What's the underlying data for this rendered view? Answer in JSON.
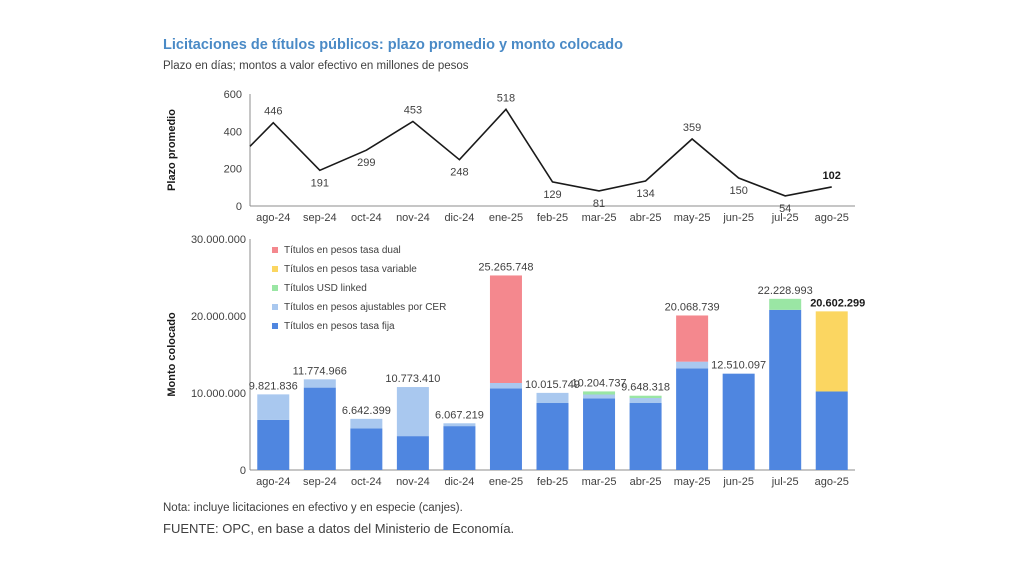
{
  "title": "Licitaciones de títulos públicos: plazo promedio y monto colocado",
  "subtitle": "Plazo en días; montos a valor efectivo en millones de pesos",
  "note": "Nota: incluye licitaciones en efectivo y en especie (canjes).",
  "source": "FUENTE: OPC, en base a datos del Ministerio de Economía.",
  "chart_data": [
    {
      "type": "line",
      "ylabel": "Plazo promedio",
      "ylim": [
        0,
        600
      ],
      "yticks": [
        "0",
        "200",
        "400",
        "600"
      ],
      "categories": [
        "ago-24",
        "sep-24",
        "oct-24",
        "nov-24",
        "dic-24",
        "ene-25",
        "feb-25",
        "mar-25",
        "abr-25",
        "may-25",
        "jun-25",
        "jul-25",
        "ago-25"
      ],
      "values": [
        446,
        191,
        299,
        453,
        248,
        518,
        129,
        81,
        134,
        359,
        150,
        54,
        102
      ],
      "labels": [
        "446",
        "191",
        "299",
        "453",
        "248",
        "518",
        "129",
        "81",
        "134",
        "359",
        "150",
        "54",
        "102"
      ],
      "line_color": "#1a1a1a"
    },
    {
      "type": "bar",
      "stacked": true,
      "ylabel": "Monto colocado",
      "ylim": [
        0,
        30000000
      ],
      "yticks": [
        "0",
        "10.000.000",
        "20.000.000",
        "30.000.000"
      ],
      "categories": [
        "ago-24",
        "sep-24",
        "oct-24",
        "nov-24",
        "dic-24",
        "ene-25",
        "feb-25",
        "mar-25",
        "abr-25",
        "may-25",
        "jun-25",
        "jul-25",
        "ago-25"
      ],
      "series": [
        {
          "name": "Títulos en pesos tasa fija",
          "color": "#4f86e0",
          "values": [
            6500000,
            10700000,
            5400000,
            4400000,
            5700000,
            10600000,
            8700000,
            9300000,
            8700000,
            13200000,
            12510097,
            20800000,
            10200000
          ]
        },
        {
          "name": "Títulos en pesos ajustables por CER",
          "color": "#a9c8ef",
          "values": [
            3321836,
            1074966,
            1242399,
            6373410,
            367219,
            700000,
            1315749,
            504737,
            648318,
            868739,
            0,
            0,
            0
          ]
        },
        {
          "name": "Títulos USD linked",
          "color": "#9ae6a4",
          "values": [
            0,
            0,
            0,
            0,
            0,
            0,
            0,
            400000,
            300000,
            0,
            0,
            1428993,
            0
          ]
        },
        {
          "name": "Títulos en pesos tasa variable",
          "color": "#fbd661",
          "values": [
            0,
            0,
            0,
            0,
            0,
            0,
            0,
            0,
            0,
            0,
            0,
            0,
            10402299
          ]
        },
        {
          "name": "Títulos en pesos tasa dual",
          "color": "#f4888e",
          "values": [
            0,
            0,
            0,
            0,
            0,
            13965748,
            0,
            0,
            0,
            6000000,
            0,
            0,
            0
          ]
        }
      ],
      "totals": [
        9821836,
        11774966,
        6642399,
        10773410,
        6067219,
        25265748,
        10015749,
        10204737,
        9648318,
        20068739,
        12510097,
        22228993,
        20602299
      ],
      "total_labels": [
        "9.821.836",
        "11.774.966",
        "6.642.399",
        "10.773.410",
        "6.067.219",
        "25.265.748",
        "10.015.749",
        "10.204.737",
        "9.648.318",
        "20.068.739",
        "12.510.097",
        "22.228.993",
        "20.602.299"
      ],
      "legend": [
        {
          "name": "Títulos en pesos tasa dual",
          "color": "#f4888e"
        },
        {
          "name": "Títulos en pesos tasa variable",
          "color": "#fbd661"
        },
        {
          "name": "Títulos USD linked",
          "color": "#9ae6a4"
        },
        {
          "name": "Títulos en pesos ajustables por CER",
          "color": "#a9c8ef"
        },
        {
          "name": "Títulos en pesos tasa fija",
          "color": "#4f86e0"
        }
      ],
      "legend_position": "top-left"
    }
  ]
}
